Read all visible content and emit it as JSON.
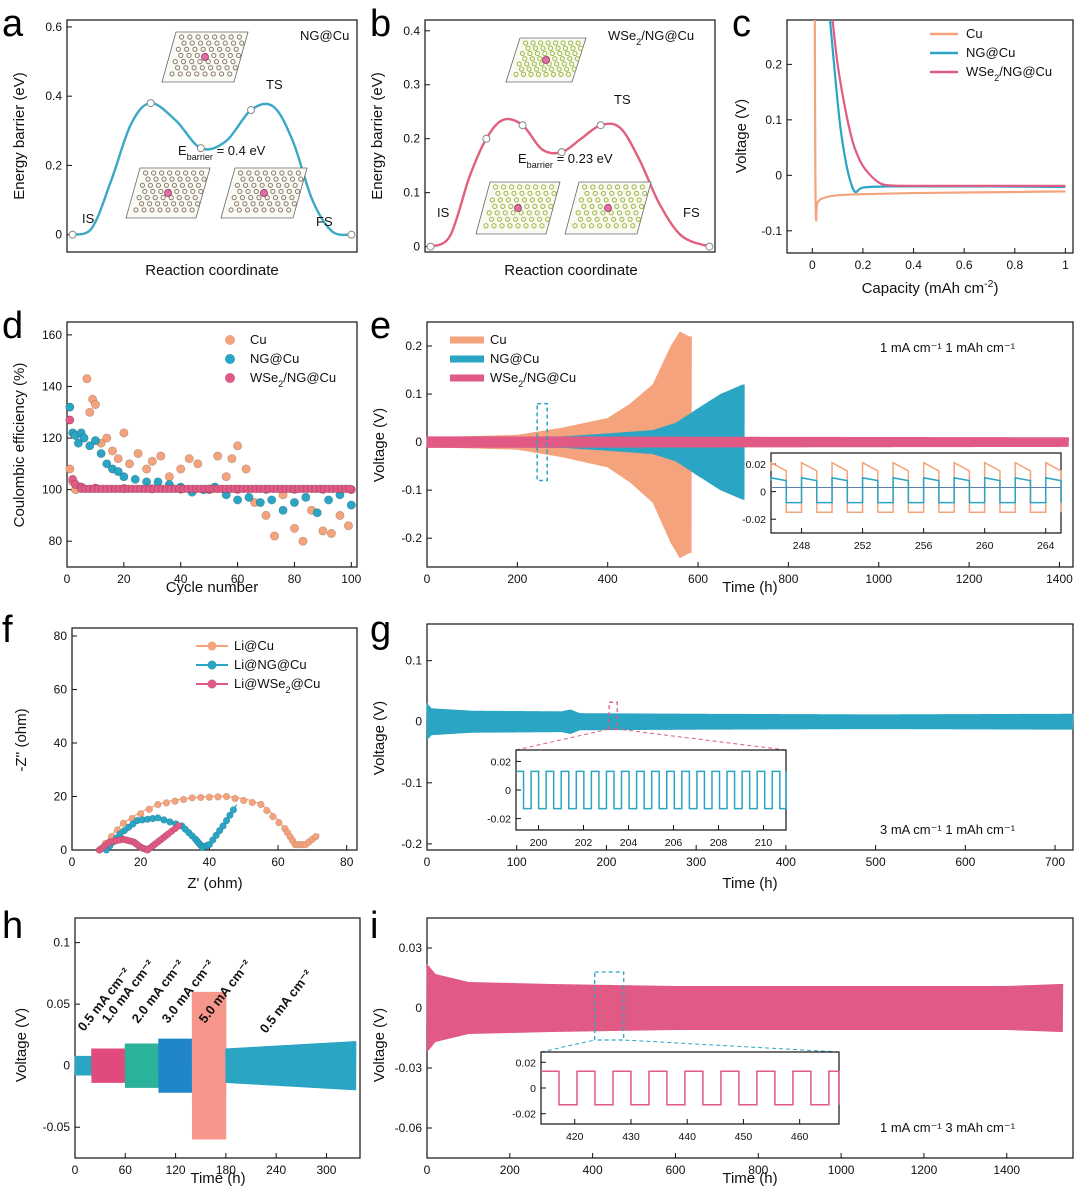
{
  "colors": {
    "cu": "#f4a37c",
    "ngcu": "#2aa5c4",
    "wse2": "#e05a85",
    "rate_pink": "#e04a7e",
    "rate_green": "#2ab39a",
    "rate_blue": "#1f86c9",
    "rate_salmon": "#f7968a",
    "dft_a": "#3aa9c6",
    "dft_b": "#e0607e"
  },
  "panels": {
    "a": {
      "label": "a",
      "corner": "NG@Cu",
      "xlabel": "Reaction coordinate",
      "ylabel": "Energy barrier (eV)",
      "ebar_main": "E",
      "ebar_sub": "barrier",
      "ebar_val": "= 0.4 eV",
      "is": "IS",
      "ts": "TS",
      "fs": "FS",
      "yticks": [
        "0",
        "0.2",
        "0.4",
        "0.6"
      ]
    },
    "b": {
      "label": "b",
      "corner_main": "WSe",
      "corner_sub": "2",
      "corner_end": "/NG@Cu",
      "xlabel": "Reaction coordinate",
      "ylabel": "Energy barrier (eV)",
      "ebar_main": "E",
      "ebar_sub": "barrier",
      "ebar_val": "= 0.23 eV",
      "is": "IS",
      "ts": "TS",
      "fs": "FS",
      "yticks": [
        "0",
        "0.1",
        "0.2",
        "0.3",
        "0.4"
      ]
    },
    "c": {
      "label": "c",
      "xlabel_main": "Capacity (mAh cm",
      "xlabel_sup": "-2",
      "xlabel_end": ")",
      "ylabel": "Voltage (V)",
      "legend": [
        "Cu",
        "NG@Cu",
        "WSe2/NG@Cu"
      ],
      "xticks": [
        "0",
        "0.2",
        "0.4",
        "0.6",
        "0.8",
        "1"
      ],
      "yticks": [
        "-0.1",
        "0",
        "0.1",
        "0.2"
      ]
    },
    "d": {
      "label": "d",
      "xlabel": "Cycle number",
      "ylabel": "Coulombic efficiency (%)",
      "legend": [
        "Cu",
        "NG@Cu",
        "WSe2/NG@Cu"
      ],
      "xticks": [
        "0",
        "20",
        "40",
        "60",
        "80",
        "100"
      ],
      "yticks": [
        "80",
        "100",
        "120",
        "140",
        "160"
      ]
    },
    "e": {
      "label": "e",
      "xlabel": "Time (h)",
      "ylabel": "Voltage (V)",
      "legend": [
        "Cu",
        "NG@Cu",
        "WSe2/NG@Cu"
      ],
      "condition": "1 mA cm⁻¹  1 mAh cm⁻¹",
      "xticks": [
        "0",
        "200",
        "400",
        "600",
        "800",
        "1000",
        "1200",
        "1400"
      ],
      "yticks": [
        "-0.2",
        "-0.1",
        "0",
        "0.1",
        "0.2"
      ],
      "inset_xticks": [
        "248",
        "252",
        "256",
        "260",
        "264"
      ],
      "inset_yticks": [
        "-0.02",
        "0",
        "0.02"
      ]
    },
    "f": {
      "label": "f",
      "xlabel": "Z' (ohm)",
      "ylabel": "-Z'' (ohm)",
      "legend": [
        "Li@Cu",
        "Li@NG@Cu",
        "Li@WSe2@Cu"
      ],
      "xticks": [
        "0",
        "20",
        "40",
        "60",
        "80"
      ],
      "yticks": [
        "0",
        "20",
        "40",
        "60",
        "80"
      ]
    },
    "g": {
      "label": "g",
      "xlabel": "Time (h)",
      "ylabel": "Voltage (V)",
      "condition": "3 mA cm⁻¹  1 mAh cm⁻¹",
      "xticks": [
        "0",
        "100",
        "200",
        "300",
        "400",
        "500",
        "600",
        "700"
      ],
      "yticks": [
        "-0.2",
        "-0.1",
        "0",
        "0.1"
      ],
      "inset_xticks": [
        "200",
        "202",
        "204",
        "206",
        "208",
        "210"
      ],
      "inset_yticks": [
        "-0.02",
        "0",
        "0.02"
      ]
    },
    "h": {
      "label": "h",
      "xlabel": "Time (h)",
      "ylabel": "Voltage (V)",
      "xticks": [
        "0",
        "60",
        "120",
        "180",
        "240",
        "300"
      ],
      "yticks": [
        "-0.05",
        "0",
        "0.05",
        "0.1"
      ],
      "rates": [
        "0.5 mA cm⁻²",
        "1.0 mA cm⁻²",
        "2.0 mA cm⁻²",
        "3.0 mA cm⁻²",
        "5.0 mA cm⁻²",
        "0.5 mA cm⁻²"
      ]
    },
    "i": {
      "label": "i",
      "xlabel": "Time (h)",
      "ylabel": "Voltage (V)",
      "condition": "1 mA cm⁻¹  3 mAh cm⁻¹",
      "xticks": [
        "0",
        "200",
        "400",
        "600",
        "800",
        "1000",
        "1200",
        "1400"
      ],
      "yticks": [
        "-0.06",
        "-0.03",
        "0",
        "0.03"
      ],
      "inset_xticks": [
        "420",
        "430",
        "440",
        "450",
        "460"
      ],
      "inset_yticks": [
        "-0.02",
        "0",
        "0.02"
      ]
    }
  },
  "chart_data": [
    {
      "panel": "a",
      "type": "line",
      "title": "NG@Cu",
      "xlabel": "Reaction coordinate",
      "ylabel": "Energy barrier (eV)",
      "ylim": [
        -0.05,
        0.62
      ],
      "x": [
        0,
        0.07,
        0.14,
        0.21,
        0.28,
        0.37,
        0.46,
        0.55,
        0.64,
        0.72,
        0.79,
        0.86,
        0.93,
        1.0
      ],
      "series": [
        {
          "values": [
            0,
            0.02,
            0.16,
            0.32,
            0.38,
            0.33,
            0.25,
            0.27,
            0.36,
            0.37,
            0.27,
            0.1,
            0.01,
            0
          ]
        }
      ],
      "states": {
        "IS": 0,
        "TS": 0.37,
        "FS": 0,
        "Ebarrier": 0.4
      }
    },
    {
      "panel": "b",
      "type": "line",
      "title": "WSe2/NG@Cu",
      "xlabel": "Reaction coordinate",
      "ylabel": "Energy barrier (eV)",
      "ylim": [
        -0.01,
        0.42
      ],
      "x": [
        0,
        0.07,
        0.14,
        0.2,
        0.26,
        0.33,
        0.4,
        0.47,
        0.54,
        0.61,
        0.68,
        0.75,
        0.82,
        0.9,
        1.0
      ],
      "series": [
        {
          "values": [
            0,
            0.02,
            0.13,
            0.2,
            0.235,
            0.225,
            0.18,
            0.175,
            0.2,
            0.225,
            0.22,
            0.16,
            0.08,
            0.02,
            0
          ]
        }
      ],
      "states": {
        "IS": 0,
        "TS": 0.225,
        "FS": 0,
        "Ebarrier": 0.23
      }
    },
    {
      "panel": "c",
      "type": "line",
      "xlabel": "Capacity (mAh cm-2)",
      "ylabel": "Voltage (V)",
      "xlim": [
        -0.1,
        1.03
      ],
      "ylim": [
        -0.14,
        0.28
      ],
      "series": [
        {
          "name": "Cu",
          "x": [
            0.01,
            0.012,
            0.015,
            0.02,
            0.05,
            0.1,
            0.2,
            0.4,
            0.6,
            0.8,
            1.0
          ],
          "values": [
            0.28,
            0.0,
            -0.08,
            -0.05,
            -0.04,
            -0.036,
            -0.034,
            -0.032,
            -0.031,
            -0.03,
            -0.029
          ]
        },
        {
          "name": "NG@Cu",
          "x": [
            0.07,
            0.09,
            0.11,
            0.13,
            0.15,
            0.17,
            0.2,
            0.3,
            0.5,
            0.7,
            1.0
          ],
          "values": [
            0.28,
            0.18,
            0.09,
            0.03,
            -0.01,
            -0.03,
            -0.022,
            -0.02,
            -0.02,
            -0.02,
            -0.021
          ]
        },
        {
          "name": "WSe2/NG@Cu",
          "x": [
            0.08,
            0.1,
            0.13,
            0.16,
            0.19,
            0.22,
            0.26,
            0.3,
            0.4,
            0.6,
            1.0
          ],
          "values": [
            0.28,
            0.2,
            0.12,
            0.06,
            0.025,
            0.005,
            -0.012,
            -0.018,
            -0.019,
            -0.019,
            -0.019
          ]
        }
      ]
    },
    {
      "panel": "d",
      "type": "scatter",
      "xlabel": "Cycle number",
      "ylabel": "Coulombic efficiency (%)",
      "xlim": [
        0,
        102
      ],
      "ylim": [
        70,
        165
      ],
      "series": [
        {
          "name": "Cu",
          "x": [
            1,
            2,
            3,
            5,
            7,
            8,
            9,
            10,
            12,
            14,
            16,
            18,
            20,
            22,
            25,
            28,
            30,
            33,
            36,
            40,
            43,
            46,
            50,
            53,
            56,
            58,
            60,
            63,
            66,
            70,
            73,
            76,
            80,
            83,
            86,
            90,
            93,
            96,
            99
          ],
          "values": [
            108,
            103,
            100,
            101,
            143,
            130,
            135,
            133,
            118,
            120,
            115,
            112,
            122,
            110,
            114,
            108,
            111,
            113,
            105,
            108,
            112,
            110,
            100,
            113,
            105,
            112,
            117,
            108,
            95,
            90,
            82,
            98,
            85,
            80,
            92,
            84,
            83,
            90,
            86
          ]
        },
        {
          "name": "NG@Cu",
          "x": [
            1,
            2,
            3,
            4,
            5,
            6,
            8,
            10,
            12,
            14,
            16,
            18,
            20,
            24,
            28,
            32,
            36,
            40,
            44,
            48,
            52,
            56,
            60,
            64,
            68,
            72,
            76,
            80,
            84,
            88,
            92,
            96,
            100
          ],
          "values": [
            132,
            122,
            121,
            118,
            122,
            120,
            117,
            119,
            114,
            110,
            108,
            107,
            105,
            104,
            103,
            103,
            102,
            101,
            99,
            100,
            101,
            98,
            96,
            97,
            95,
            96,
            92,
            95,
            97,
            91,
            96,
            98,
            94
          ]
        },
        {
          "name": "WSe2/NG@Cu",
          "x": [
            1,
            2,
            3,
            5,
            10,
            20,
            30,
            40,
            50,
            60,
            70,
            80,
            90,
            100
          ],
          "values": [
            127,
            104,
            102,
            101,
            100.6,
            100.4,
            100.3,
            100.2,
            100.2,
            100.1,
            100.1,
            100.1,
            100.1,
            100
          ]
        }
      ]
    },
    {
      "panel": "e",
      "type": "area",
      "xlabel": "Time (h)",
      "ylabel": "Voltage (V)",
      "xlim": [
        0,
        1430
      ],
      "ylim": [
        -0.26,
        0.25
      ],
      "series": [
        {
          "name": "Cu",
          "x": [
            0,
            200,
            300,
            400,
            450,
            500,
            540,
            560,
            580
          ],
          "values": [
            0.01,
            0.015,
            0.03,
            0.05,
            0.08,
            0.12,
            0.2,
            0.23,
            0.22
          ]
        },
        {
          "name": "NG@Cu",
          "x": [
            0,
            300,
            400,
            500,
            550,
            600,
            650,
            700
          ],
          "values": [
            0.01,
            0.012,
            0.018,
            0.025,
            0.04,
            0.07,
            0.1,
            0.12
          ]
        },
        {
          "name": "WSe2/NG@Cu",
          "x": [
            0,
            1420
          ],
          "values": [
            0.012,
            0.01
          ]
        }
      ]
    },
    {
      "panel": "f",
      "type": "line",
      "xlabel": "Z' (ohm)",
      "ylabel": "-Z'' (ohm)",
      "xlim": [
        0,
        83
      ],
      "ylim": [
        0,
        83
      ],
      "series": [
        {
          "name": "Li@Cu",
          "x": [
            8,
            15,
            25,
            35,
            45,
            55,
            62,
            65,
            68,
            72
          ],
          "values": [
            0,
            10,
            17,
            19.5,
            20,
            17,
            8,
            2,
            2,
            6
          ]
        },
        {
          "name": "Li@NG@Cu",
          "x": [
            10,
            14,
            19,
            25,
            32,
            36,
            38,
            40,
            44,
            48
          ],
          "values": [
            0,
            6,
            11,
            12,
            9,
            4,
            1,
            2,
            9,
            17
          ]
        },
        {
          "name": "Li@WSe2@Cu",
          "x": [
            8,
            11,
            15,
            18,
            20,
            22,
            25,
            28,
            32
          ],
          "values": [
            0,
            3,
            4,
            3,
            1,
            0,
            3,
            6,
            10
          ]
        }
      ]
    },
    {
      "panel": "g",
      "type": "area",
      "xlabel": "Time (h)",
      "ylabel": "Voltage (V)",
      "xlim": [
        0,
        720
      ],
      "ylim": [
        -0.21,
        0.16
      ],
      "series": [
        {
          "x": [
            0,
            5,
            50,
            150,
            160,
            170,
            300,
            500,
            720
          ],
          "values": [
            0.03,
            0.022,
            0.018,
            0.017,
            0.02,
            0.014,
            0.013,
            0.012,
            0.013
          ]
        }
      ]
    },
    {
      "panel": "h",
      "type": "area",
      "xlabel": "Time (h)",
      "ylabel": "Voltage (V)",
      "xlim": [
        0,
        340
      ],
      "ylim": [
        -0.075,
        0.12
      ],
      "segments": [
        {
          "label": "0.5 mA cm⁻²",
          "x": [
            0,
            20
          ],
          "amplitude": 0.008
        },
        {
          "label": "1.0 mA cm⁻²",
          "x": [
            20,
            60
          ],
          "amplitude": 0.014
        },
        {
          "label": "2.0 mA cm⁻²",
          "x": [
            60,
            100
          ],
          "amplitude": 0.018
        },
        {
          "label": "3.0 mA cm⁻²",
          "x": [
            100,
            140
          ],
          "amplitude": 0.022
        },
        {
          "label": "5.0 mA cm⁻²",
          "x": [
            140,
            180
          ],
          "amplitude": 0.06
        },
        {
          "label": "0.5 mA cm⁻²",
          "x": [
            180,
            335
          ],
          "amplitude": 0.015
        }
      ]
    },
    {
      "panel": "i",
      "type": "area",
      "xlabel": "Time (h)",
      "ylabel": "Voltage (V)",
      "xlim": [
        0,
        1560
      ],
      "ylim": [
        -0.075,
        0.045
      ],
      "series": [
        {
          "x": [
            0,
            20,
            100,
            300,
            600,
            1000,
            1400,
            1530
          ],
          "values": [
            0.022,
            0.017,
            0.013,
            0.012,
            0.011,
            0.011,
            0.011,
            0.012
          ]
        }
      ]
    }
  ]
}
